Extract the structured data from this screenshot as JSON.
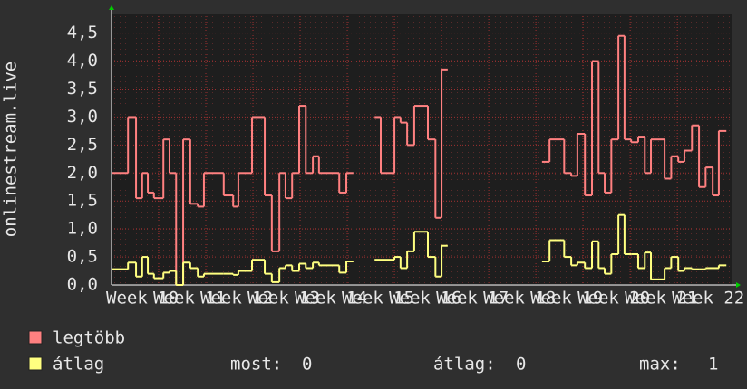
{
  "chart_data": {
    "type": "step",
    "y_label": "onlinestream.live",
    "xlim": [
      10,
      23.17
    ],
    "ylim": [
      0,
      4.85
    ],
    "xticks": [
      {
        "value": 10,
        "label": "Week 10"
      },
      {
        "value": 11,
        "label": "Week 11"
      },
      {
        "value": 12,
        "label": "Week 12"
      },
      {
        "value": 13,
        "label": "Week 13"
      },
      {
        "value": 14,
        "label": "Week 14"
      },
      {
        "value": 15,
        "label": "Week 15"
      },
      {
        "value": 16,
        "label": "Week 16"
      },
      {
        "value": 17,
        "label": "Week 17"
      },
      {
        "value": 18,
        "label": "Week 18"
      },
      {
        "value": 19,
        "label": "Week 19"
      },
      {
        "value": 20,
        "label": "Week 20"
      },
      {
        "value": 21,
        "label": "Week 21"
      },
      {
        "value": 22,
        "label": "Week 22"
      }
    ],
    "yticks": [
      {
        "value": 0,
        "label": "0,0"
      },
      {
        "value": 0.5,
        "label": "0,5"
      },
      {
        "value": 1,
        "label": "1,0"
      },
      {
        "value": 1.5,
        "label": "1,5"
      },
      {
        "value": 2,
        "label": "2,0"
      },
      {
        "value": 2.5,
        "label": "2,5"
      },
      {
        "value": 3,
        "label": "3,0"
      },
      {
        "value": 3.5,
        "label": "3,5"
      },
      {
        "value": 4,
        "label": "4,0"
      },
      {
        "value": 4.5,
        "label": "4,5"
      }
    ],
    "grid": true,
    "x": [
      10,
      10.35,
      10.52,
      10.65,
      10.77,
      10.9,
      11.1,
      11.23,
      11.37,
      11.52,
      11.67,
      11.83,
      11.96,
      12.38,
      12.58,
      12.69,
      12.98,
      13.25,
      13.4,
      13.56,
      13.69,
      13.83,
      13.98,
      14.12,
      14.27,
      14.4,
      14.83,
      14.98,
      15.13,
      15.58,
      15.71,
      16.0,
      16.13,
      16.27,
      16.42,
      16.71,
      16.87,
      17.0,
      17.13,
      19.13,
      19.29,
      19.6,
      19.75,
      19.88,
      20.04,
      20.19,
      20.33,
      20.46,
      20.6,
      20.75,
      20.88,
      21.02,
      21.17,
      21.31,
      21.44,
      21.73,
      21.87,
      22.02,
      22.15,
      22.31,
      22.46,
      22.6,
      22.75,
      22.88,
      23.04
    ],
    "series": [
      {
        "name": "legtöbb",
        "color": "#ff8080",
        "values": [
          2.0,
          3.0,
          1.55,
          2.0,
          1.65,
          1.55,
          2.6,
          2.0,
          0.0,
          2.6,
          1.45,
          1.4,
          2.0,
          1.6,
          1.4,
          2.0,
          3.0,
          1.6,
          0.6,
          2.0,
          1.55,
          2.0,
          3.2,
          2.0,
          2.3,
          2.0,
          1.65,
          2.0,
          null,
          3.0,
          2.0,
          3.0,
          2.9,
          2.5,
          3.2,
          2.6,
          1.2,
          3.85,
          null,
          2.2,
          2.6,
          2.0,
          1.95,
          2.7,
          1.6,
          4.0,
          2.0,
          1.65,
          2.6,
          4.45,
          2.6,
          2.55,
          2.65,
          2.0,
          2.6,
          1.9,
          2.3,
          2.2,
          2.4,
          2.85,
          1.75,
          2.1,
          1.6,
          2.75,
          null
        ]
      },
      {
        "name": "átlag",
        "color": "#ffff80",
        "values": [
          0.28,
          0.4,
          0.15,
          0.5,
          0.2,
          0.12,
          0.22,
          0.25,
          0.0,
          0.4,
          0.3,
          0.15,
          0.2,
          0.2,
          0.18,
          0.25,
          0.45,
          0.2,
          0.05,
          0.3,
          0.35,
          0.25,
          0.38,
          0.3,
          0.4,
          0.35,
          0.22,
          0.42,
          null,
          0.45,
          0.45,
          0.5,
          0.3,
          0.6,
          0.95,
          0.5,
          0.15,
          0.7,
          null,
          0.42,
          0.8,
          0.5,
          0.35,
          0.4,
          0.3,
          0.78,
          0.3,
          0.2,
          0.55,
          1.25,
          0.55,
          0.55,
          0.3,
          0.58,
          0.1,
          0.3,
          0.5,
          0.25,
          0.3,
          0.28,
          0.28,
          0.3,
          0.3,
          0.35,
          null
        ]
      }
    ],
    "stats": [
      {
        "label": "most:",
        "value": 0
      },
      {
        "label": "átlag:",
        "value": 0
      },
      {
        "label": "max:",
        "value": 1
      }
    ]
  }
}
